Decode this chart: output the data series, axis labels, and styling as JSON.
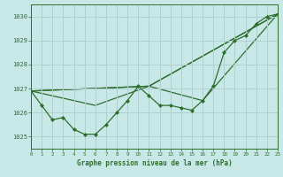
{
  "background_color": "#c8e8e8",
  "grid_color": "#b0d0d0",
  "line_color": "#2d6e2d",
  "marker_color": "#2d6e2d",
  "title": "Graphe pression niveau de la mer (hPa)",
  "xlim": [
    0,
    23
  ],
  "ylim": [
    1024.5,
    1030.5
  ],
  "yticks": [
    1025,
    1026,
    1027,
    1028,
    1029,
    1030
  ],
  "xticks": [
    0,
    1,
    2,
    3,
    4,
    5,
    6,
    7,
    8,
    9,
    10,
    11,
    12,
    13,
    14,
    15,
    16,
    17,
    18,
    19,
    20,
    21,
    22,
    23
  ],
  "series1_x": [
    0,
    1,
    2,
    3,
    4,
    5,
    6,
    7,
    8,
    9,
    10,
    11,
    12,
    13,
    14,
    15,
    16,
    17,
    18,
    19,
    20,
    21,
    22,
    23
  ],
  "series1_y": [
    1026.9,
    1026.3,
    1025.7,
    1025.8,
    1025.3,
    1025.1,
    1025.1,
    1025.5,
    1026.0,
    1026.5,
    1027.1,
    1026.7,
    1026.3,
    1026.3,
    1026.2,
    1026.1,
    1026.5,
    1027.1,
    1028.5,
    1029.0,
    1029.2,
    1029.7,
    1030.0,
    1030.1
  ],
  "series2_x": [
    0,
    11,
    23
  ],
  "series2_y": [
    1026.9,
    1027.1,
    1030.1
  ],
  "series3_x": [
    0,
    11,
    16,
    23
  ],
  "series3_y": [
    1026.9,
    1027.1,
    1026.5,
    1030.1
  ],
  "series4_x": [
    0,
    6,
    11,
    23
  ],
  "series4_y": [
    1026.9,
    1026.3,
    1027.1,
    1030.1
  ]
}
